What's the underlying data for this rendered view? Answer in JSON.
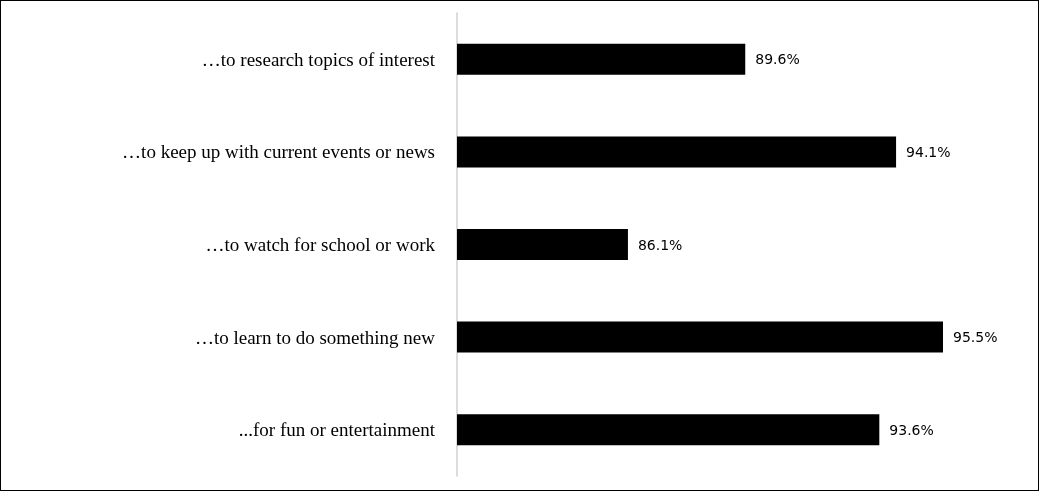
{
  "chart_data": {
    "type": "bar",
    "orientation": "horizontal",
    "categories": [
      "…to research topics of interest",
      "…to keep up with current events or news",
      "…to watch for school or work",
      "…to learn to do something new",
      "...for fun or entertainment"
    ],
    "values": [
      89.6,
      94.1,
      86.1,
      95.5,
      93.6
    ],
    "value_labels": [
      "89.6%",
      "94.1%",
      "86.1%",
      "95.5%",
      "93.6%"
    ],
    "color": "#000000",
    "xlim": [
      81,
      95.5
    ],
    "tick_labels": "y",
    "grid": false
  }
}
